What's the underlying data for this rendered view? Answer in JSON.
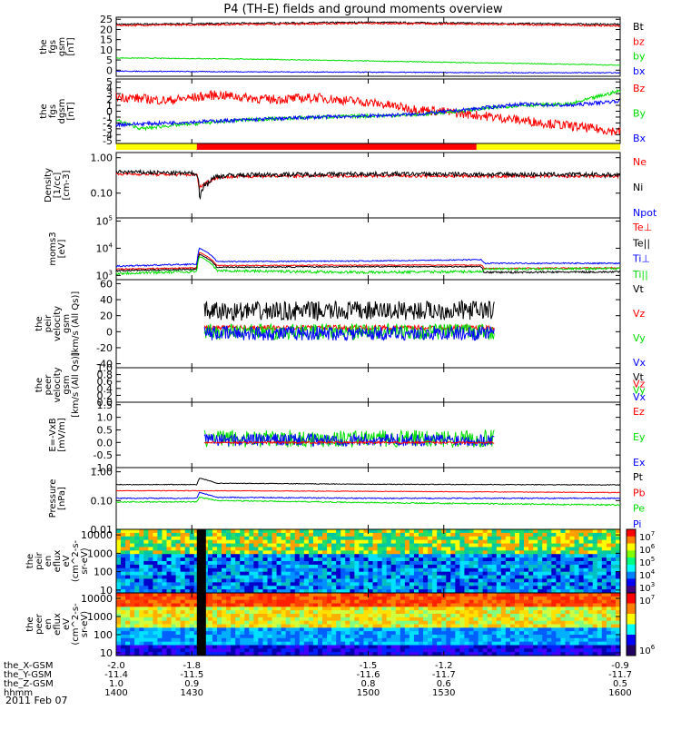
{
  "title": "P4 (TH-E) fields and ground moments overview",
  "date_label": "2011 Feb 07",
  "colors": {
    "black": "#000000",
    "red": "#ff0000",
    "green": "#00dd00",
    "blue": "#0000ff",
    "yellow": "#ffff00",
    "bar_red": "#ff0000"
  },
  "mode_bar": {
    "segments": [
      {
        "start": 1400,
        "end": 1432,
        "color": "yellow"
      },
      {
        "start": 1432,
        "end": 1543,
        "color": "red"
      },
      {
        "start": 1543,
        "end": 1600,
        "color": "yellow"
      }
    ]
  },
  "x_axis": {
    "range": [
      1400,
      1600
    ],
    "row_labels": [
      "the_X-GSM",
      "the_Y-GSM",
      "the_Z-GSM",
      "hhmm"
    ],
    "ticks": [
      {
        "t": 1400,
        "vals": [
          "-2.0",
          "-11.4",
          "1.0",
          "1400"
        ]
      },
      {
        "t": 1430,
        "vals": [
          "-1.8",
          "-11.5",
          "0.9",
          "1430"
        ]
      },
      {
        "t": 1500,
        "vals": [
          "-1.5",
          "-11.6",
          "0.8",
          "1500"
        ]
      },
      {
        "t": 1530,
        "vals": [
          "-1.2",
          "-11.7",
          "0.6",
          "1530"
        ]
      },
      {
        "t": 1600,
        "vals": [
          "-0.9",
          "-11.7",
          "0.5",
          "1600"
        ]
      }
    ]
  },
  "chart_data": [
    {
      "type": "line",
      "id": "fgs",
      "ylabel_lines": [
        "the",
        "fgs",
        "gsm",
        "[nT]"
      ],
      "ylim": [
        -3,
        26
      ],
      "scale": "linear",
      "yticks": [
        "25",
        "20",
        "15",
        "10",
        "5",
        "0"
      ],
      "ytick_values": [
        25,
        20,
        15,
        10,
        5,
        0
      ],
      "legend": [
        {
          "label": "Bt",
          "color": "black"
        },
        {
          "label": "bz",
          "color": "red"
        },
        {
          "label": "by",
          "color": "green"
        },
        {
          "label": "bx",
          "color": "blue"
        }
      ],
      "series": [
        {
          "name": "Bt",
          "color": "black",
          "x": [
            1400,
            1450,
            1500,
            1550,
            1600
          ],
          "y": [
            22.5,
            23,
            23.5,
            23,
            22.5
          ],
          "noise": 0.4
        },
        {
          "name": "bz",
          "color": "red",
          "x": [
            1400,
            1450,
            1500,
            1550,
            1600
          ],
          "y": [
            22,
            22.5,
            23,
            22.5,
            21.8
          ],
          "noise": 0.4
        },
        {
          "name": "by",
          "color": "green",
          "x": [
            1400,
            1450,
            1500,
            1550,
            1600
          ],
          "y": [
            6,
            5.5,
            4.5,
            3.5,
            2.5
          ],
          "noise": 0.2
        },
        {
          "name": "bx",
          "color": "blue",
          "x": [
            1400,
            1450,
            1500,
            1550,
            1600
          ],
          "y": [
            -0.5,
            -0.8,
            -1,
            -1.2,
            -1.3
          ],
          "noise": 0.2
        }
      ]
    },
    {
      "type": "line",
      "id": "fgs_dgsm",
      "ylabel_lines": [
        "the",
        "fgs",
        "dgsm",
        "[nT]"
      ],
      "ylim": [
        -5.5,
        5.5
      ],
      "scale": "linear",
      "yticks": [
        "5",
        "4",
        "3",
        "2",
        "1",
        "0",
        "-1",
        "-2",
        "-3",
        "-4",
        "-5"
      ],
      "ytick_values": [
        5,
        4,
        3,
        2,
        1,
        0,
        -1,
        -2,
        -3,
        -4,
        -5
      ],
      "legend": [
        {
          "label": "Bz",
          "color": "red"
        },
        {
          "label": "By",
          "color": "green"
        },
        {
          "label": "Bx",
          "color": "blue"
        }
      ],
      "series": [
        {
          "name": "Bz",
          "color": "red",
          "x": [
            1400,
            1420,
            1440,
            1460,
            1480,
            1500,
            1520,
            1540,
            1560,
            1580,
            1600
          ],
          "y": [
            2.5,
            1.8,
            2.8,
            2.0,
            2.3,
            1.5,
            0.3,
            -0.5,
            -1.5,
            -2.5,
            -3.5
          ],
          "noise": 0.8
        },
        {
          "name": "By",
          "color": "green",
          "x": [
            1400,
            1410,
            1420,
            1450,
            1480,
            1500,
            1520,
            1540,
            1560,
            1580,
            1600
          ],
          "y": [
            -1.5,
            -3.0,
            -2.5,
            -1.5,
            -1.0,
            -0.8,
            -0.6,
            0.2,
            1.0,
            1.2,
            3.5
          ],
          "noise": 0.3
        },
        {
          "name": "Bx",
          "color": "blue",
          "x": [
            1400,
            1420,
            1450,
            1480,
            1500,
            1520,
            1540,
            1560,
            1580,
            1600
          ],
          "y": [
            -2.3,
            -2.0,
            -1.5,
            -1.0,
            -0.8,
            -0.5,
            0.3,
            1.2,
            1.0,
            1.8
          ],
          "noise": 0.3
        }
      ]
    },
    {
      "type": "line",
      "id": "density",
      "ylabel_lines": [
        "Density",
        "[1/cc]",
        "[cm-3]"
      ],
      "ylim": [
        0.02,
        1.4
      ],
      "scale": "log",
      "yticks": [
        "1.00",
        "0.10"
      ],
      "ytick_values": [
        1.0,
        0.1
      ],
      "legend": [
        {
          "label": "Ne",
          "color": "red"
        },
        {
          "label": "Ni",
          "color": "black"
        },
        {
          "label": "Npot",
          "color": "blue"
        }
      ],
      "series": [
        {
          "name": "Ne",
          "color": "red",
          "x": [
            1400,
            1432,
            1433,
            1440,
            1450,
            1500,
            1550,
            1600
          ],
          "y": [
            0.35,
            0.33,
            0.14,
            0.28,
            0.3,
            0.31,
            0.3,
            0.3
          ],
          "noise": 0.03
        },
        {
          "name": "Ni",
          "color": "black",
          "x": [
            1400,
            1432,
            1433,
            1440,
            1450,
            1500,
            1550,
            1600
          ],
          "y": [
            0.4,
            0.36,
            0.11,
            0.3,
            0.33,
            0.35,
            0.34,
            0.33
          ],
          "noise": 0.05
        }
      ]
    },
    {
      "type": "line",
      "id": "temperature",
      "ylabel_lines": [
        "moms3",
        "[eV]"
      ],
      "ylim": [
        700,
        130000
      ],
      "scale": "log",
      "yticks": [
        "10^5",
        "10^4",
        "10^3"
      ],
      "ytick_values": [
        100000,
        10000,
        1000
      ],
      "legend": [
        {
          "label": "Te⊥",
          "color": "red"
        },
        {
          "label": "Te||",
          "color": "black"
        },
        {
          "label": "Ti⊥",
          "color": "blue"
        },
        {
          "label": "Ti||",
          "color": "green"
        }
      ],
      "series": [
        {
          "name": "Te⊥",
          "color": "red",
          "x": [
            1400,
            1432,
            1433,
            1440,
            1500,
            1545,
            1546,
            1600
          ],
          "y": [
            1700,
            1900,
            7000,
            2300,
            2400,
            2400,
            1800,
            1900
          ],
          "noise": 100
        },
        {
          "name": "Te||",
          "color": "black",
          "x": [
            1400,
            1432,
            1433,
            1440,
            1500,
            1545,
            1546,
            1600
          ],
          "y": [
            1500,
            1700,
            6000,
            2000,
            2100,
            2100,
            1300,
            1350
          ],
          "noise": 100
        },
        {
          "name": "Ti⊥",
          "color": "blue",
          "x": [
            1400,
            1432,
            1433,
            1440,
            1500,
            1545,
            1546,
            1600
          ],
          "y": [
            2200,
            2600,
            10000,
            3200,
            3400,
            3800,
            2800,
            2800
          ],
          "noise": 150
        },
        {
          "name": "Ti||",
          "color": "green",
          "x": [
            1400,
            1432,
            1433,
            1440,
            1500,
            1545,
            1546,
            1600
          ],
          "y": [
            1200,
            1400,
            5000,
            1500,
            1300,
            1400,
            1700,
            1800
          ],
          "noise": 150
        }
      ]
    },
    {
      "type": "line",
      "id": "peir_velocity",
      "ylabel_lines": [
        "the",
        "peir",
        "velocity",
        "gsm",
        "[km/s (All Qs)]"
      ],
      "ylim": [
        -45,
        65
      ],
      "scale": "linear",
      "yticks": [
        "60",
        "40",
        "20",
        "0",
        "-20",
        "-40"
      ],
      "ytick_values": [
        60,
        40,
        20,
        0,
        -20,
        -40
      ],
      "legend": [
        {
          "label": "Vt",
          "color": "black"
        },
        {
          "label": "Vz",
          "color": "red"
        },
        {
          "label": "Vy",
          "color": "green"
        },
        {
          "label": "Vx",
          "color": "blue"
        }
      ],
      "series": [
        {
          "name": "Vt",
          "color": "black",
          "x": [
            1435,
            1600
          ],
          "y": [
            25,
            28
          ],
          "noise": 12,
          "xrange": [
            1435,
            1550
          ]
        },
        {
          "name": "Vz",
          "color": "red",
          "x": [
            1435,
            1600
          ],
          "y": [
            5,
            5
          ],
          "noise": 3,
          "xrange": [
            1435,
            1550
          ]
        },
        {
          "name": "Vy",
          "color": "green",
          "x": [
            1435,
            1600
          ],
          "y": [
            0,
            0
          ],
          "noise": 10,
          "xrange": [
            1435,
            1550
          ]
        },
        {
          "name": "Vx",
          "color": "blue",
          "x": [
            1435,
            1600
          ],
          "y": [
            -2,
            -2
          ],
          "noise": 9,
          "xrange": [
            1435,
            1550
          ]
        }
      ]
    },
    {
      "type": "line",
      "id": "peer_velocity",
      "ylabel_lines": [
        "the",
        "peer",
        "velocity",
        "gsm",
        "[km/s (All Qs)]"
      ],
      "ylim": [
        0,
        1
      ],
      "scale": "linear",
      "yticks": [
        "1.0",
        "0.8",
        "0.6",
        "0.4",
        "0.2",
        "0.0"
      ],
      "ytick_values": [
        1.0,
        0.8,
        0.6,
        0.4,
        0.2,
        0.0
      ],
      "legend": [
        {
          "label": "Vt",
          "color": "black"
        },
        {
          "label": "Vz",
          "color": "red"
        },
        {
          "label": "Vy",
          "color": "green"
        },
        {
          "label": "Vx",
          "color": "blue"
        }
      ],
      "series": []
    },
    {
      "type": "line",
      "id": "efield",
      "ylabel_lines": [
        "E=-VxB",
        "[mV/m]"
      ],
      "ylim": [
        -1.0,
        1.6
      ],
      "scale": "linear",
      "yticks": [
        "1.5",
        "1.0",
        "0.5",
        "0.0",
        "-0.5",
        "-1.0"
      ],
      "ytick_values": [
        1.5,
        1.0,
        0.5,
        0.0,
        -0.5,
        -1.0
      ],
      "legend": [
        {
          "label": "Ez",
          "color": "red"
        },
        {
          "label": "Ey",
          "color": "green"
        },
        {
          "label": "Ex",
          "color": "blue"
        }
      ],
      "series": [
        {
          "name": "Ey",
          "color": "green",
          "x": [
            1435,
            1600
          ],
          "y": [
            0.15,
            0.15
          ],
          "noise": 0.35,
          "xrange": [
            1435,
            1550
          ]
        },
        {
          "name": "Ex",
          "color": "blue",
          "x": [
            1435,
            1600
          ],
          "y": [
            0.1,
            0.1
          ],
          "noise": 0.25,
          "xrange": [
            1435,
            1550
          ]
        },
        {
          "name": "Ez",
          "color": "red",
          "x": [
            1435,
            1600
          ],
          "y": [
            0.0,
            0.0
          ],
          "noise": 0.04,
          "xrange": [
            1435,
            1550
          ]
        }
      ]
    },
    {
      "type": "line",
      "id": "pressure",
      "ylabel_lines": [
        "Pressure",
        "[nPa]"
      ],
      "ylim": [
        0.01,
        1.4
      ],
      "scale": "log",
      "yticks": [
        "1.00",
        "0.10",
        "0.01"
      ],
      "ytick_values": [
        1.0,
        0.1,
        0.01
      ],
      "legend": [
        {
          "label": "Pt",
          "color": "black"
        },
        {
          "label": "Pb",
          "color": "red"
        },
        {
          "label": "Pe",
          "color": "green"
        },
        {
          "label": "Pi",
          "color": "blue"
        }
      ],
      "series": [
        {
          "name": "Pt",
          "color": "black",
          "x": [
            1400,
            1432,
            1433,
            1440,
            1500,
            1600
          ],
          "y": [
            0.36,
            0.36,
            0.6,
            0.4,
            0.37,
            0.35
          ],
          "noise": 0.01
        },
        {
          "name": "Pb",
          "color": "red",
          "x": [
            1400,
            1432,
            1440,
            1500,
            1600
          ],
          "y": [
            0.22,
            0.22,
            0.22,
            0.21,
            0.19
          ],
          "noise": 0.005
        },
        {
          "name": "Pi",
          "color": "blue",
          "x": [
            1400,
            1432,
            1433,
            1440,
            1500,
            1600
          ],
          "y": [
            0.12,
            0.12,
            0.19,
            0.13,
            0.12,
            0.12
          ],
          "noise": 0.005
        },
        {
          "name": "Pe",
          "color": "green",
          "x": [
            1400,
            1432,
            1433,
            1440,
            1500,
            1600
          ],
          "y": [
            0.09,
            0.09,
            0.13,
            0.1,
            0.085,
            0.07
          ],
          "noise": 0.004
        }
      ]
    },
    {
      "type": "heatmap",
      "id": "peir_spec",
      "ylabel_lines": [
        "the",
        "peir",
        "en",
        "eflux",
        "eV",
        "(cm^2-s-",
        "sr-eV)"
      ],
      "ylim": [
        7,
        20000
      ],
      "scale": "log",
      "yticks": [
        "10000",
        "1000",
        "100",
        "10"
      ],
      "ytick_values": [
        10000,
        1000,
        100,
        10
      ],
      "colorbar": {
        "labels": [
          "10^7",
          "10^6",
          "10^5",
          "10^4",
          "10^3"
        ]
      }
    },
    {
      "type": "heatmap",
      "id": "peer_spec",
      "ylabel_lines": [
        "the",
        "peer",
        "en",
        "eflux",
        "eV",
        "(cm^2-s-",
        "sr-eV)"
      ],
      "ylim": [
        7,
        20000
      ],
      "scale": "log",
      "yticks": [
        "10000",
        "1000",
        "100",
        "10"
      ],
      "ytick_values": [
        10000,
        1000,
        100,
        10
      ],
      "colorbar": {
        "labels": [
          "10^7",
          "10^6"
        ]
      }
    }
  ]
}
